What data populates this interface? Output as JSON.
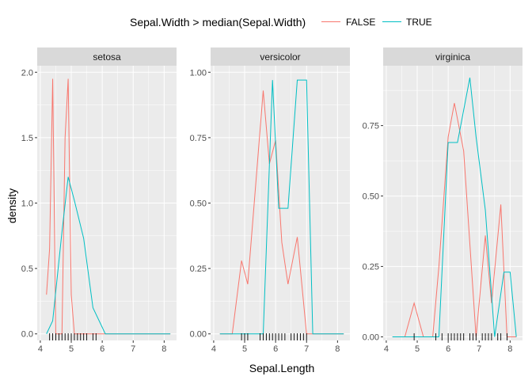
{
  "legend": {
    "title": "Sepal.Width > median(Sepal.Width)",
    "items": [
      {
        "label": "FALSE",
        "color": "#F8766D"
      },
      {
        "label": "TRUE",
        "color": "#00BFC4"
      }
    ],
    "placement": "top"
  },
  "chart_data": {
    "type": "line",
    "title": "",
    "xlabel": "Sepal.Length",
    "ylabel": "density",
    "facets": [
      {
        "label": "setosa",
        "xlim": [
          3.9,
          8.4
        ],
        "ylim": [
          -0.05,
          2.05
        ],
        "xticks": [
          4,
          5,
          6,
          7,
          8
        ],
        "yticks": [
          0.0,
          0.5,
          1.0,
          1.5,
          2.0
        ],
        "ytick_labels": [
          "0.0",
          "0.5",
          "1.0",
          "1.5",
          "2.0"
        ],
        "series": [
          {
            "name": "FALSE",
            "x": [
              4.2,
              4.3,
              4.4,
              4.5,
              4.7,
              4.8,
              4.9,
              5.0,
              5.1,
              5.2,
              5.4,
              5.5,
              5.8,
              6.1,
              6.4,
              7.0,
              8.2
            ],
            "y": [
              0.3,
              0.65,
              1.95,
              0.0,
              0.0,
              1.5,
              1.95,
              0.3,
              0.0,
              0.0,
              0.0,
              0.0,
              0.0,
              0.0,
              0.0,
              0.0,
              0.0
            ]
          },
          {
            "name": "TRUE",
            "x": [
              4.2,
              4.4,
              4.7,
              4.9,
              5.1,
              5.4,
              5.7,
              6.1,
              6.4,
              7.0,
              8.2
            ],
            "y": [
              0.0,
              0.1,
              0.78,
              1.2,
              1.02,
              0.73,
              0.2,
              0.0,
              0.0,
              0.0,
              0.0
            ]
          }
        ],
        "rug": [
          4.3,
          4.4,
          4.5,
          4.6,
          4.7,
          4.8,
          4.9,
          5.0,
          5.1,
          5.2,
          5.3,
          5.4,
          5.5,
          5.7,
          5.8
        ]
      },
      {
        "label": "versicolor",
        "xlim": [
          3.9,
          8.4
        ],
        "ylim": [
          -0.025,
          1.025
        ],
        "xticks": [
          4,
          5,
          6,
          7,
          8
        ],
        "yticks": [
          0.0,
          0.25,
          0.5,
          0.75,
          1.0
        ],
        "ytick_labels": [
          "0.00",
          "0.25",
          "0.50",
          "0.75",
          "1.00"
        ],
        "series": [
          {
            "name": "FALSE",
            "x": [
              4.2,
              4.6,
              4.9,
              5.1,
              5.6,
              5.8,
              6.0,
              6.2,
              6.4,
              6.7,
              7.0,
              7.3,
              8.2
            ],
            "y": [
              0.0,
              0.0,
              0.28,
              0.19,
              0.93,
              0.65,
              0.74,
              0.35,
              0.19,
              0.37,
              0.0,
              0.0,
              0.0
            ]
          },
          {
            "name": "TRUE",
            "x": [
              4.2,
              5.6,
              5.9,
              6.1,
              6.4,
              6.7,
              7.0,
              7.2,
              8.2
            ],
            "y": [
              0.0,
              0.0,
              0.97,
              0.48,
              0.48,
              0.97,
              0.97,
              0.0,
              0.0
            ]
          }
        ],
        "rug": [
          4.9,
          5.0,
          5.1,
          5.5,
          5.6,
          5.7,
          5.8,
          5.9,
          6.0,
          6.1,
          6.2,
          6.3,
          6.5,
          6.6,
          6.7,
          6.8,
          6.9,
          7.0
        ]
      },
      {
        "label": "virginica",
        "xlim": [
          3.9,
          8.4
        ],
        "ylim": [
          -0.0125,
          0.9625
        ],
        "xticks": [
          4,
          5,
          6,
          7,
          8
        ],
        "yticks": [
          0.0,
          0.25,
          0.5,
          0.75
        ],
        "ytick_labels": [
          "0.00",
          "0.25",
          "0.50",
          "0.75"
        ],
        "series": [
          {
            "name": "FALSE",
            "x": [
              4.2,
              4.6,
              4.9,
              5.2,
              5.5,
              5.7,
              6.0,
              6.2,
              6.5,
              6.9,
              7.2,
              7.4,
              7.7,
              7.9,
              8.2
            ],
            "y": [
              0.0,
              0.0,
              0.12,
              0.0,
              0.0,
              0.25,
              0.71,
              0.83,
              0.66,
              0.0,
              0.36,
              0.12,
              0.47,
              0.0,
              0.0
            ]
          },
          {
            "name": "TRUE",
            "x": [
              4.2,
              5.7,
              6.0,
              6.3,
              6.7,
              6.9,
              7.2,
              7.5,
              7.8,
              8.0,
              8.2
            ],
            "y": [
              0.0,
              0.0,
              0.69,
              0.69,
              0.92,
              0.71,
              0.45,
              0.0,
              0.23,
              0.23,
              0.0
            ]
          }
        ],
        "rug": [
          4.9,
          5.6,
          5.8,
          6.0,
          6.1,
          6.2,
          6.3,
          6.4,
          6.5,
          6.7,
          6.8,
          6.9,
          7.1,
          7.2,
          7.3,
          7.4,
          7.6,
          7.7,
          7.9
        ]
      }
    ]
  }
}
